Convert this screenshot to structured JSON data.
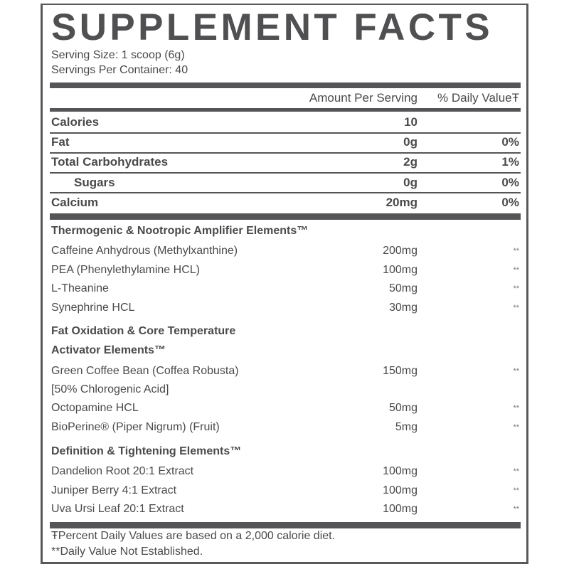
{
  "title": "SUPPLEMENT FACTS",
  "serving_size": "Serving Size: 1 scoop (6g)",
  "servings_per_container": "Servings Per Container: 40",
  "header": {
    "amount": "Amount Per Serving",
    "daily_value": "% Daily ValueŦ"
  },
  "nutrients": [
    {
      "name": "Calories",
      "amount": "10",
      "dv": ""
    },
    {
      "name": "Fat",
      "amount": "0g",
      "dv": "0%"
    },
    {
      "name": "Total Carbohydrates",
      "amount": "2g",
      "dv": "1%"
    },
    {
      "name": "Sugars",
      "amount": "0g",
      "dv": "0%"
    },
    {
      "name": "Calcium",
      "amount": "20mg",
      "dv": "0%"
    }
  ],
  "sections": [
    {
      "heading": "Thermogenic & Nootropic Amplifier Elements™",
      "items": [
        {
          "name": "Caffeine Anhydrous (Methylxanthine)",
          "amount": "200mg",
          "dv": "**"
        },
        {
          "name": "PEA (Phenylethylamine HCL)",
          "amount": "100mg",
          "dv": "**"
        },
        {
          "name": "L-Theanine",
          "amount": "50mg",
          "dv": "**"
        },
        {
          "name": "Synephrine HCL",
          "amount": "30mg",
          "dv": "**"
        }
      ]
    },
    {
      "heading_line1": "Fat Oxidation & Core Temperature",
      "heading_line2": "Activator Elements™",
      "items": [
        {
          "name": "Green Coffee Bean (Coffea Robusta)",
          "amount": "150mg",
          "dv": "**",
          "note": "[50% Chlorogenic Acid]"
        },
        {
          "name": "Octopamine HCL",
          "amount": "50mg",
          "dv": "**"
        },
        {
          "name": "BioPerine® (Piper Nigrum) (Fruit)",
          "amount": "5mg",
          "dv": "**"
        }
      ]
    },
    {
      "heading": "Definition & Tightening Elements™",
      "items": [
        {
          "name": "Dandelion Root 20:1 Extract",
          "amount": "100mg",
          "dv": "**"
        },
        {
          "name": "Juniper Berry 4:1 Extract",
          "amount": "100mg",
          "dv": "**"
        },
        {
          "name": "Uva Ursi Leaf 20:1 Extract",
          "amount": "100mg",
          "dv": "**"
        }
      ]
    }
  ],
  "footnotes": [
    "ŦPercent Daily Values are based on a 2,000 calorie diet.",
    "**Daily Value Not Established."
  ]
}
